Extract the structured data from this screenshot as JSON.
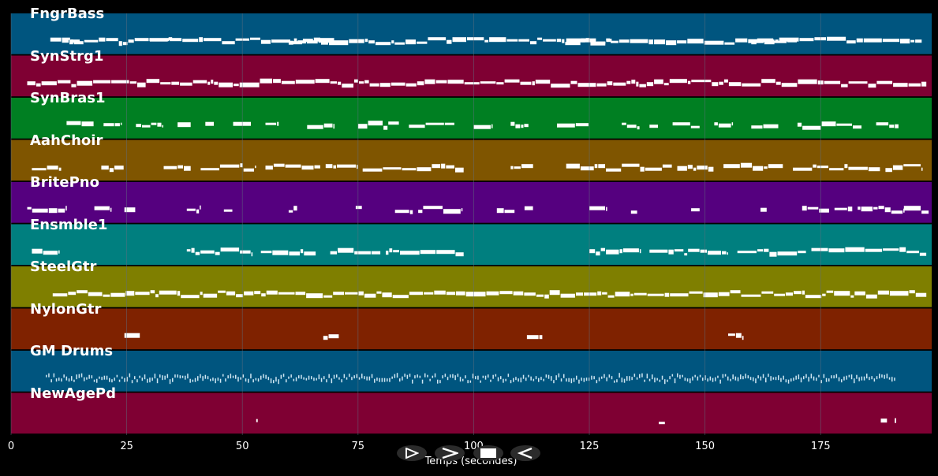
{
  "colors": {
    "background": "#000000",
    "grid": "#5f6f7f",
    "note": "#ffffff"
  },
  "tracks": [
    {
      "name": "FngrBass",
      "color": "#00557f",
      "segments": [
        [
          8.5,
          197
        ],
        [
          11,
          15
        ],
        [
          30,
          35
        ],
        [
          60,
          70
        ],
        [
          120,
          130
        ],
        [
          160,
          170
        ]
      ]
    },
    {
      "name": "SynStrg1",
      "color": "#7f0033",
      "segments": [
        [
          3.5,
          198
        ]
      ]
    },
    {
      "name": "SynBras1",
      "color": "#007f22",
      "segments": [
        [
          12,
          18
        ],
        [
          20,
          24
        ],
        [
          27,
          33
        ],
        [
          36,
          39
        ],
        [
          42,
          44
        ],
        [
          48,
          52
        ],
        [
          55,
          58
        ],
        [
          64,
          70
        ],
        [
          75,
          84
        ],
        [
          86,
          96
        ],
        [
          100,
          104
        ],
        [
          108,
          112
        ],
        [
          118,
          125
        ],
        [
          132,
          136
        ],
        [
          138,
          140
        ],
        [
          143,
          149
        ],
        [
          152,
          156
        ],
        [
          160,
          166
        ],
        [
          170,
          184
        ],
        [
          187,
          192
        ]
      ]
    },
    {
      "name": "AahChoir",
      "color": "#7f5500",
      "segments": [
        [
          4.5,
          11
        ],
        [
          19.5,
          24.5
        ],
        [
          33,
          39
        ],
        [
          41,
          53
        ],
        [
          55,
          67
        ],
        [
          68,
          75
        ],
        [
          76,
          98
        ],
        [
          108,
          113
        ],
        [
          120,
          143
        ],
        [
          144,
          152
        ],
        [
          154,
          167
        ],
        [
          169,
          188
        ],
        [
          189,
          197
        ]
      ]
    },
    {
      "name": "BritePno",
      "color": "#55007f",
      "segments": [
        [
          3.5,
          12
        ],
        [
          18,
          21.5
        ],
        [
          24.5,
          27
        ],
        [
          38,
          41
        ],
        [
          46,
          48
        ],
        [
          60,
          62
        ],
        [
          74.5,
          76
        ],
        [
          83,
          87
        ],
        [
          88,
          97.5
        ],
        [
          105,
          109
        ],
        [
          111,
          113
        ],
        [
          125,
          129
        ],
        [
          134,
          135.5
        ],
        [
          147,
          149
        ],
        [
          162,
          163.5
        ],
        [
          171,
          177
        ],
        [
          178,
          182
        ],
        [
          183,
          193
        ],
        [
          193,
          198.5
        ]
      ]
    },
    {
      "name": "Ensmble1",
      "color": "#007f7f",
      "segments": [
        [
          4.5,
          10.5
        ],
        [
          38,
          52
        ],
        [
          54,
          66
        ],
        [
          69,
          80
        ],
        [
          81,
          98
        ],
        [
          125,
          136
        ],
        [
          138,
          155
        ],
        [
          157,
          172
        ],
        [
          173,
          198
        ]
      ]
    },
    {
      "name": "SteelGtr",
      "color": "#7f7f00",
      "segments": [
        [
          9,
          198
        ]
      ]
    },
    {
      "name": "NylonGtr",
      "color": "#7f2200",
      "segments": [
        [
          24.5,
          28
        ],
        [
          67.5,
          71
        ],
        [
          111.5,
          115
        ],
        [
          155,
          158.5
        ]
      ]
    },
    {
      "name": "GM Drums",
      "color": "#00557f",
      "segments": [
        [
          7.5,
          191
        ]
      ]
    },
    {
      "name": "NewAgePd",
      "color": "#7f0033",
      "segments": [
        [
          53,
          53.5
        ],
        [
          140,
          141.5
        ],
        [
          188,
          189.5
        ],
        [
          191,
          191.5
        ]
      ]
    }
  ],
  "x_axis": {
    "title": "Temps (secondes)",
    "min": 0,
    "max": 199,
    "ticks": [
      {
        "value": 0,
        "label": "0"
      },
      {
        "value": 25,
        "label": "25"
      },
      {
        "value": 50,
        "label": "50"
      },
      {
        "value": 75,
        "label": "75"
      },
      {
        "value": 100,
        "label": "100"
      },
      {
        "value": 125,
        "label": "125"
      },
      {
        "value": 150,
        "label": "150"
      },
      {
        "value": 175,
        "label": "175"
      }
    ]
  },
  "controls": [
    {
      "name": "play-outline-icon"
    },
    {
      "name": "fast-forward-icon"
    },
    {
      "name": "stop-icon"
    },
    {
      "name": "rewind-icon"
    }
  ]
}
